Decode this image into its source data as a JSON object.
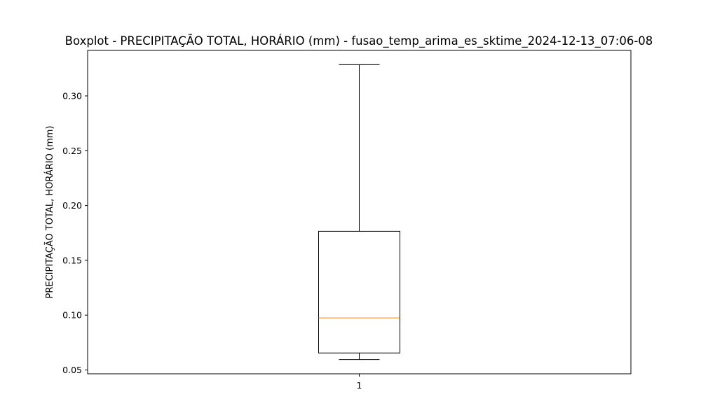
{
  "chart_data": {
    "type": "boxplot",
    "title": "Boxplot - PRECIPITAÇÃO TOTAL, HORÁRIO (mm) - fusao_temp_arima_es_sktime_2024-12-13_07:06-08",
    "xlabel": "",
    "ylabel": "PRECIPITAÇÃO TOTAL, HORÁRIO (mm)",
    "categories": [
      "1"
    ],
    "boxes": [
      {
        "category": "1",
        "whisker_low": 0.0595,
        "q1": 0.0655,
        "median": 0.0975,
        "q3": 0.1765,
        "whisker_high": 0.3285
      }
    ],
    "ylim": [
      0.0465,
      0.3415
    ],
    "yticks": [
      0.05,
      0.1,
      0.15,
      0.2,
      0.25,
      0.3
    ],
    "ytick_labels": [
      "0.05",
      "0.10",
      "0.15",
      "0.20",
      "0.25",
      "0.30"
    ],
    "grid": false,
    "colors": {
      "box": "#000000",
      "median": "#ff7f0e",
      "whisker": "#000000"
    }
  }
}
